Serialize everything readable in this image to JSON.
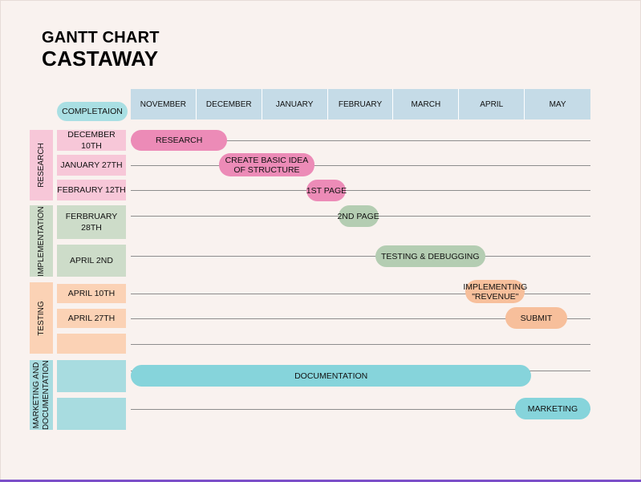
{
  "header": {
    "title": "GANTT CHART",
    "subtitle": "CASTAWAY"
  },
  "colors": {
    "research": "#ec8bb7",
    "research_light": "#f7c7d8",
    "implementation": "#b4cdb2",
    "implementation_light": "#cddcc9",
    "testing": "#f7bf9b",
    "testing_light": "#fbd2b5",
    "marketing": "#86d4db",
    "marketing_light": "#a8dce0",
    "month_header": "#c5dbe7"
  },
  "chart_data": {
    "type": "gantt",
    "title": "GANTT CHART",
    "subtitle": "CASTAWAY",
    "completion_label": "COMPLETAION",
    "months": [
      "NOVEMBER",
      "DECEMBER",
      "JANUARY",
      "FEBRUARY",
      "MARCH",
      "APRIL",
      "MAY"
    ],
    "phases": [
      {
        "name": "RESEARCH",
        "color": "research"
      },
      {
        "name": "IMPLEMENTATION",
        "color": "implementation"
      },
      {
        "name": "TESTING",
        "color": "testing"
      },
      {
        "name": "MARKETING AND DOCUMENTATION",
        "color": "marketing"
      }
    ],
    "rows": [
      {
        "phase": 0,
        "completion": "DECEMBER 10TH",
        "task": "RESEARCH",
        "start": 0.0,
        "end": 1.47
      },
      {
        "phase": 0,
        "completion": "JANUARY 27TH",
        "task": "CREATE BASIC IDEA OF STRUCTURE",
        "start": 1.34,
        "end": 2.8
      },
      {
        "phase": 0,
        "completion": "FEBRAURY 12TH",
        "task": "1ST PAGE",
        "start": 2.68,
        "end": 3.28
      },
      {
        "phase": 1,
        "completion": "FERBRUARY 28TH",
        "task": "2ND PAGE",
        "start": 3.16,
        "end": 3.77
      },
      {
        "phase": 1,
        "completion": "APRIL 2ND",
        "task": "TESTING & DEBUGGING",
        "start": 3.72,
        "end": 5.4
      },
      {
        "phase": 2,
        "completion": "APRIL 10TH",
        "task": "IMPLEMENTING \"REVENUE\"",
        "start": 5.1,
        "end": 6.0
      },
      {
        "phase": 2,
        "completion": "APRIL 27TH",
        "task": "SUBMIT",
        "start": 5.7,
        "end": 6.65
      },
      {
        "phase": 2,
        "completion": "",
        "task": "",
        "start": null,
        "end": null
      },
      {
        "phase": 3,
        "completion": "",
        "task": "DOCUMENTATION",
        "start": 0.0,
        "end": 6.1
      },
      {
        "phase": 3,
        "completion": "",
        "task": "MARKETING",
        "start": 5.85,
        "end": 7.0
      }
    ]
  }
}
